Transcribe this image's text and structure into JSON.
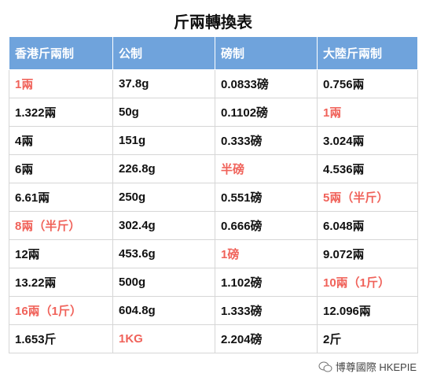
{
  "title": "斤兩轉換表",
  "table": {
    "header": [
      "香港斤兩制",
      "公制",
      "磅制",
      "大陸斤兩制"
    ],
    "rows": [
      [
        "1兩",
        "37.8g",
        "0.0833磅",
        "0.756兩"
      ],
      [
        "1.322兩",
        "50g",
        "0.1102磅",
        "1兩"
      ],
      [
        "4兩",
        "151g",
        "0.333磅",
        "3.024兩"
      ],
      [
        "6兩",
        "226.8g",
        "半磅",
        "4.536兩"
      ],
      [
        "6.61兩",
        "250g",
        "0.551磅",
        "5兩（半斤）"
      ],
      [
        "8兩（半斤）",
        "302.4g",
        "0.666磅",
        "6.048兩"
      ],
      [
        "12兩",
        "453.6g",
        "1磅",
        "9.072兩"
      ],
      [
        "13.22兩",
        "500g",
        "1.102磅",
        "10兩（1斤）"
      ],
      [
        "16兩（1斤）",
        "604.8g",
        "1.333磅",
        "12.096兩"
      ],
      [
        "1.653斤",
        "1KG",
        "2.204磅",
        "2斤"
      ]
    ],
    "header_color": "#6fa3dc",
    "highlight_color": "#f0625a",
    "highlighted": [
      [
        0,
        0
      ],
      [
        1,
        3
      ],
      [
        3,
        2
      ],
      [
        4,
        3
      ],
      [
        5,
        0
      ],
      [
        6,
        2
      ],
      [
        7,
        3
      ],
      [
        8,
        0
      ],
      [
        9,
        1
      ]
    ]
  },
  "footer": {
    "brand": "博尊國際 HKEPIE"
  }
}
